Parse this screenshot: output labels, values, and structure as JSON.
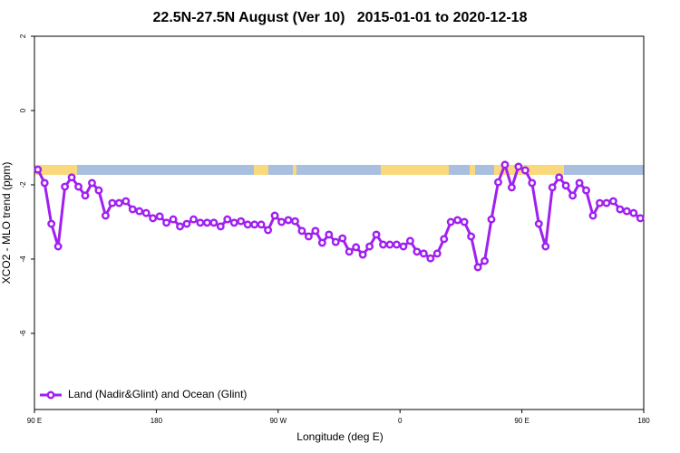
{
  "chart_data": {
    "type": "line",
    "title": "22.5N-27.5N August (Ver 10)   2015-01-01 to 2020-12-18",
    "x_label": "Longitude (deg E)",
    "y_label": "XCO2 - MLO trend (ppm)",
    "x": [
      92.5,
      97.5,
      102.5,
      107.5,
      112.5,
      117.5,
      122.5,
      127.5,
      132.5,
      137.5,
      142.5,
      147.5,
      152.5,
      157.5,
      162.5,
      167.5,
      172.5,
      177.5,
      182.5,
      187.5,
      192.5,
      197.5,
      202.5,
      207.5,
      212.5,
      217.5,
      222.5,
      227.5,
      232.5,
      237.5,
      242.5,
      247.5,
      252.5,
      257.5,
      262.5,
      267.5,
      272.5,
      277.5,
      282.5,
      287.5,
      292.5,
      297.5,
      302.5,
      307.5,
      312.5,
      317.5,
      322.5,
      327.5,
      332.5,
      337.5,
      342.5,
      347.5,
      352.5,
      357.5,
      362.5,
      367.5,
      372.5,
      377.5,
      382.5,
      387.5,
      392.5,
      397.5,
      402.5,
      407.5,
      412.5,
      417.5,
      422.5,
      427.5,
      432.5,
      437.5,
      442.5,
      447.5,
      452.5,
      457.5,
      462.5,
      467.5,
      472.5,
      477.5,
      482.5,
      487.5,
      492.5,
      497.5,
      502.5,
      507.5,
      512.5,
      517.5,
      522.5,
      527.5,
      532.5,
      537.5
    ],
    "series": [
      {
        "name": "Land (Nadir&Glint) and Ocean (Glint)",
        "color": "#a020f0",
        "values": [
          -1.59,
          -1.95,
          -3.05,
          -3.66,
          -2.05,
          -1.8,
          -2.05,
          -2.29,
          -1.95,
          -2.15,
          -2.83,
          -2.49,
          -2.49,
          -2.44,
          -2.66,
          -2.71,
          -2.76,
          -2.9,
          -2.85,
          -3.02,
          -2.93,
          -3.12,
          -3.05,
          -2.93,
          -3.02,
          -3.02,
          -3.02,
          -3.12,
          -2.93,
          -3.02,
          -2.98,
          -3.07,
          -3.07,
          -3.07,
          -3.22,
          -2.83,
          -3.0,
          -2.95,
          -2.98,
          -3.24,
          -3.39,
          -3.24,
          -3.56,
          -3.34,
          -3.54,
          -3.44,
          -3.8,
          -3.68,
          -3.88,
          -3.66,
          -3.34,
          -3.61,
          -3.61,
          -3.61,
          -3.66,
          -3.51,
          -3.8,
          -3.85,
          -3.98,
          -3.85,
          -3.46,
          -3.0,
          -2.95,
          -3.0,
          -3.39,
          -4.22,
          -4.05,
          -2.93,
          -1.93,
          -1.46,
          -2.07,
          -1.51,
          -1.61,
          -1.95,
          -3.05,
          -3.66,
          -2.07,
          -1.8,
          -2.02,
          -2.29,
          -1.95,
          -2.15,
          -2.83,
          -2.49,
          -2.49,
          -2.44,
          -2.66,
          -2.71,
          -2.76,
          -2.9
        ]
      }
    ],
    "xlim": [
      90,
      540
    ],
    "xticks": [
      {
        "value": 90,
        "label": "90 E"
      },
      {
        "value": 180,
        "label": "180"
      },
      {
        "value": 270,
        "label": "90 W"
      },
      {
        "value": 360,
        "label": "0"
      },
      {
        "value": 450,
        "label": "90 E"
      },
      {
        "value": 540,
        "label": "180"
      }
    ],
    "ylim": [
      -8.05,
      2
    ],
    "yticks": [
      -6,
      -4,
      -2,
      0,
      2
    ],
    "legend": "bottomleft",
    "grid": false
  }
}
